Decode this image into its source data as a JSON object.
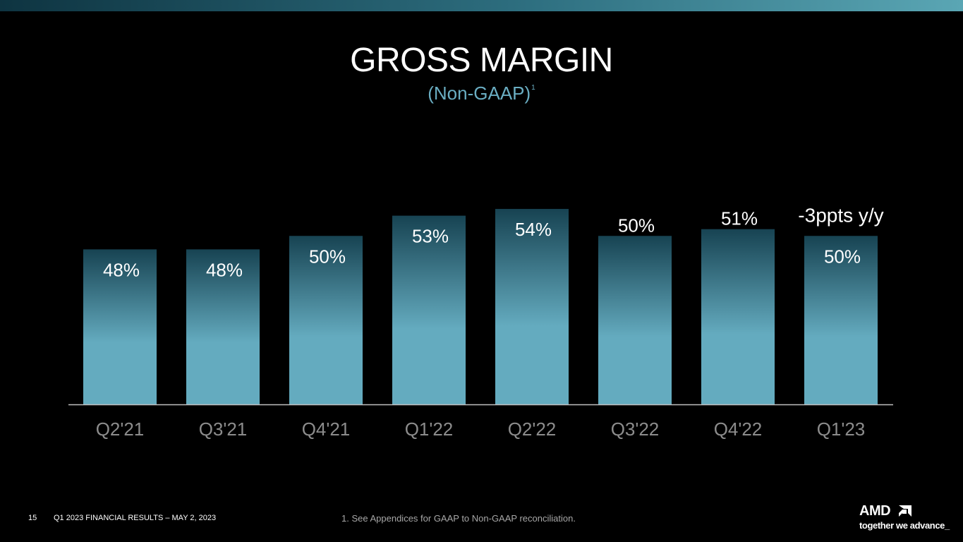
{
  "slide": {
    "page_number": "15",
    "deck_title": "Q1 2023 FINANCIAL RESULTS – MAY 2, 2023",
    "footnote": "1.  See Appendices for GAAP to Non-GAAP reconciliation.",
    "brand_name": "AMD",
    "tagline": "together we advance_"
  },
  "colors": {
    "background": "#000000",
    "bar_top": "#174352",
    "bar_bottom": "#64abbf",
    "subtitle": "#6aaec3",
    "axis_line": "#bfbfbf",
    "tick_label": "#8c8c8c"
  },
  "chart_data": {
    "type": "bar",
    "title": "GROSS MARGIN",
    "subtitle": "(Non-GAAP)",
    "subtitle_footnote_marker": "1",
    "categories": [
      "Q2'21",
      "Q3'21",
      "Q4'21",
      "Q1'22",
      "Q2'22",
      "Q3'22",
      "Q4'22",
      "Q1'23"
    ],
    "values": [
      48,
      48,
      50,
      53,
      54,
      50,
      51,
      50
    ],
    "data_labels": [
      "48%",
      "48%",
      "50%",
      "53%",
      "54%",
      "50%",
      "51%",
      "50%"
    ],
    "annotation": {
      "category": "Q1'23",
      "text": "-3ppts y/y"
    },
    "xlabel": "",
    "ylabel": "",
    "ylim": [
      25,
      54
    ],
    "grid": false,
    "legend": "none"
  }
}
